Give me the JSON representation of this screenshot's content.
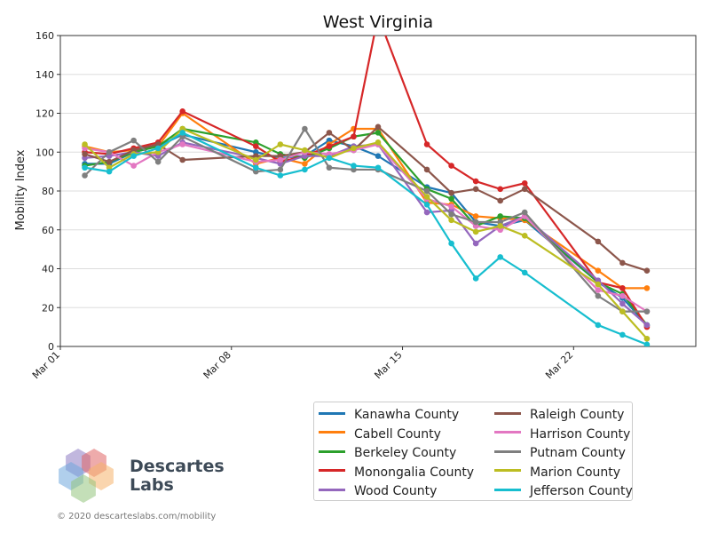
{
  "chart_data": {
    "type": "line",
    "title": "West Virginia",
    "xlabel": "",
    "ylabel": "Mobility Index",
    "ylim": [
      0,
      160
    ],
    "yticks": [
      0,
      20,
      40,
      60,
      80,
      100,
      120,
      140,
      160
    ],
    "xlim": [
      "2020-03-01",
      "2020-03-27"
    ],
    "xticks": [
      {
        "date": "2020-03-01",
        "label": "Mar 01"
      },
      {
        "date": "2020-03-08",
        "label": "Mar 08"
      },
      {
        "date": "2020-03-15",
        "label": "Mar 15"
      },
      {
        "date": "2020-03-22",
        "label": "Mar 22"
      }
    ],
    "grid": "horizontal",
    "legend_position": "bottom-right",
    "series": [
      {
        "name": "Kanawha County",
        "color": "#1f77b4",
        "points": [
          [
            "2020-03-02",
            94
          ],
          [
            "2020-03-03",
            94
          ],
          [
            "2020-03-04",
            100
          ],
          [
            "2020-03-05",
            103
          ],
          [
            "2020-03-06",
            109
          ],
          [
            "2020-03-09",
            100
          ],
          [
            "2020-03-10",
            97
          ],
          [
            "2020-03-11",
            98
          ],
          [
            "2020-03-12",
            106
          ],
          [
            "2020-03-13",
            103
          ],
          [
            "2020-03-14",
            98
          ],
          [
            "2020-03-16",
            82
          ],
          [
            "2020-03-17",
            79
          ],
          [
            "2020-03-18",
            64
          ],
          [
            "2020-03-19",
            62
          ],
          [
            "2020-03-20",
            65
          ],
          [
            "2020-03-23",
            33
          ],
          [
            "2020-03-24",
            25
          ],
          [
            "2020-03-25",
            11
          ]
        ]
      },
      {
        "name": "Cabell County",
        "color": "#ff7f0e",
        "points": [
          [
            "2020-03-02",
            103
          ],
          [
            "2020-03-03",
            100
          ],
          [
            "2020-03-04",
            101
          ],
          [
            "2020-03-05",
            103
          ],
          [
            "2020-03-06",
            120
          ],
          [
            "2020-03-09",
            94
          ],
          [
            "2020-03-10",
            97
          ],
          [
            "2020-03-11",
            94
          ],
          [
            "2020-03-12",
            104
          ],
          [
            "2020-03-13",
            112
          ],
          [
            "2020-03-14",
            112
          ],
          [
            "2020-03-16",
            74
          ],
          [
            "2020-03-17",
            73
          ],
          [
            "2020-03-18",
            67
          ],
          [
            "2020-03-19",
            66
          ],
          [
            "2020-03-20",
            65
          ],
          [
            "2020-03-23",
            39
          ],
          [
            "2020-03-24",
            30
          ],
          [
            "2020-03-25",
            30
          ]
        ]
      },
      {
        "name": "Berkeley County",
        "color": "#2ca02c",
        "points": [
          [
            "2020-03-02",
            93
          ],
          [
            "2020-03-03",
            95
          ],
          [
            "2020-03-04",
            100
          ],
          [
            "2020-03-05",
            103
          ],
          [
            "2020-03-06",
            112
          ],
          [
            "2020-03-09",
            105
          ],
          [
            "2020-03-10",
            99
          ],
          [
            "2020-03-11",
            97
          ],
          [
            "2020-03-12",
            102
          ],
          [
            "2020-03-13",
            108
          ],
          [
            "2020-03-14",
            110
          ],
          [
            "2020-03-16",
            81
          ],
          [
            "2020-03-17",
            76
          ],
          [
            "2020-03-18",
            62
          ],
          [
            "2020-03-19",
            67
          ],
          [
            "2020-03-20",
            66
          ],
          [
            "2020-03-23",
            33
          ],
          [
            "2020-03-24",
            27
          ],
          [
            "2020-03-25",
            11
          ]
        ]
      },
      {
        "name": "Monongalia County",
        "color": "#d62728",
        "points": [
          [
            "2020-03-02",
            100
          ],
          [
            "2020-03-03",
            99
          ],
          [
            "2020-03-04",
            102
          ],
          [
            "2020-03-05",
            105
          ],
          [
            "2020-03-06",
            121
          ],
          [
            "2020-03-09",
            103
          ],
          [
            "2020-03-10",
            95
          ],
          [
            "2020-03-11",
            98
          ],
          [
            "2020-03-12",
            103
          ],
          [
            "2020-03-13",
            108
          ],
          [
            "2020-03-14",
            170
          ],
          [
            "2020-03-16",
            104
          ],
          [
            "2020-03-17",
            93
          ],
          [
            "2020-03-18",
            85
          ],
          [
            "2020-03-19",
            81
          ],
          [
            "2020-03-20",
            84
          ],
          [
            "2020-03-23",
            33
          ],
          [
            "2020-03-24",
            30
          ],
          [
            "2020-03-25",
            10
          ]
        ]
      },
      {
        "name": "Wood County",
        "color": "#9467bd",
        "points": [
          [
            "2020-03-02",
            97
          ],
          [
            "2020-03-03",
            98
          ],
          [
            "2020-03-04",
            100
          ],
          [
            "2020-03-05",
            98
          ],
          [
            "2020-03-06",
            105
          ],
          [
            "2020-03-09",
            97
          ],
          [
            "2020-03-10",
            94
          ],
          [
            "2020-03-11",
            98
          ],
          [
            "2020-03-12",
            98
          ],
          [
            "2020-03-13",
            103
          ],
          [
            "2020-03-14",
            104
          ],
          [
            "2020-03-16",
            69
          ],
          [
            "2020-03-17",
            70
          ],
          [
            "2020-03-18",
            53
          ],
          [
            "2020-03-19",
            62
          ],
          [
            "2020-03-20",
            67
          ],
          [
            "2020-03-23",
            34
          ],
          [
            "2020-03-24",
            22
          ],
          [
            "2020-03-25",
            11
          ]
        ]
      },
      {
        "name": "Raleigh County",
        "color": "#8c564b",
        "points": [
          [
            "2020-03-02",
            99
          ],
          [
            "2020-03-03",
            95
          ],
          [
            "2020-03-04",
            101
          ],
          [
            "2020-03-05",
            104
          ],
          [
            "2020-03-06",
            96
          ],
          [
            "2020-03-09",
            98
          ],
          [
            "2020-03-10",
            98
          ],
          [
            "2020-03-11",
            100
          ],
          [
            "2020-03-12",
            110
          ],
          [
            "2020-03-13",
            101
          ],
          [
            "2020-03-14",
            113
          ],
          [
            "2020-03-16",
            91
          ],
          [
            "2020-03-17",
            79
          ],
          [
            "2020-03-18",
            81
          ],
          [
            "2020-03-19",
            75
          ],
          [
            "2020-03-20",
            81
          ],
          [
            "2020-03-23",
            54
          ],
          [
            "2020-03-24",
            43
          ],
          [
            "2020-03-25",
            39
          ]
        ]
      },
      {
        "name": "Harrison County",
        "color": "#e377c2",
        "points": [
          [
            "2020-03-02",
            102
          ],
          [
            "2020-03-03",
            100
          ],
          [
            "2020-03-04",
            93
          ],
          [
            "2020-03-05",
            100
          ],
          [
            "2020-03-06",
            104
          ],
          [
            "2020-03-09",
            95
          ],
          [
            "2020-03-10",
            96
          ],
          [
            "2020-03-11",
            100
          ],
          [
            "2020-03-12",
            99
          ],
          [
            "2020-03-13",
            101
          ],
          [
            "2020-03-14",
            104
          ],
          [
            "2020-03-16",
            76
          ],
          [
            "2020-03-17",
            72
          ],
          [
            "2020-03-18",
            62
          ],
          [
            "2020-03-19",
            60
          ],
          [
            "2020-03-20",
            67
          ],
          [
            "2020-03-23",
            29
          ],
          [
            "2020-03-24",
            26
          ],
          [
            "2020-03-25",
            18
          ]
        ]
      },
      {
        "name": "Putnam County",
        "color": "#7f7f7f",
        "points": [
          [
            "2020-03-02",
            88
          ],
          [
            "2020-03-03",
            100
          ],
          [
            "2020-03-04",
            106
          ],
          [
            "2020-03-05",
            95
          ],
          [
            "2020-03-06",
            108
          ],
          [
            "2020-03-09",
            90
          ],
          [
            "2020-03-10",
            91
          ],
          [
            "2020-03-11",
            112
          ],
          [
            "2020-03-12",
            92
          ],
          [
            "2020-03-13",
            91
          ],
          [
            "2020-03-14",
            91
          ],
          [
            "2020-03-16",
            80
          ],
          [
            "2020-03-17",
            68
          ],
          [
            "2020-03-18",
            64
          ],
          [
            "2020-03-19",
            64
          ],
          [
            "2020-03-20",
            69
          ],
          [
            "2020-03-23",
            26
          ],
          [
            "2020-03-24",
            18
          ],
          [
            "2020-03-25",
            18
          ]
        ]
      },
      {
        "name": "Marion County",
        "color": "#bcbd22",
        "points": [
          [
            "2020-03-02",
            104
          ],
          [
            "2020-03-03",
            92
          ],
          [
            "2020-03-04",
            99
          ],
          [
            "2020-03-05",
            100
          ],
          [
            "2020-03-06",
            112
          ],
          [
            "2020-03-09",
            96
          ],
          [
            "2020-03-10",
            104
          ],
          [
            "2020-03-11",
            101
          ],
          [
            "2020-03-12",
            97
          ],
          [
            "2020-03-13",
            102
          ],
          [
            "2020-03-14",
            105
          ],
          [
            "2020-03-16",
            77
          ],
          [
            "2020-03-17",
            65
          ],
          [
            "2020-03-18",
            59
          ],
          [
            "2020-03-19",
            62
          ],
          [
            "2020-03-20",
            57
          ],
          [
            "2020-03-23",
            32
          ],
          [
            "2020-03-24",
            18
          ],
          [
            "2020-03-25",
            4
          ]
        ]
      },
      {
        "name": "Jefferson County",
        "color": "#17becf",
        "points": [
          [
            "2020-03-02",
            92
          ],
          [
            "2020-03-03",
            90
          ],
          [
            "2020-03-04",
            98
          ],
          [
            "2020-03-05",
            102
          ],
          [
            "2020-03-06",
            110
          ],
          [
            "2020-03-09",
            92
          ],
          [
            "2020-03-10",
            88
          ],
          [
            "2020-03-11",
            91
          ],
          [
            "2020-03-12",
            97
          ],
          [
            "2020-03-13",
            93
          ],
          [
            "2020-03-14",
            92
          ],
          [
            "2020-03-16",
            73
          ],
          [
            "2020-03-17",
            53
          ],
          [
            "2020-03-18",
            35
          ],
          [
            "2020-03-19",
            46
          ],
          [
            "2020-03-20",
            38
          ],
          [
            "2020-03-23",
            11
          ],
          [
            "2020-03-24",
            6
          ],
          [
            "2020-03-25",
            1
          ]
        ]
      }
    ]
  },
  "branding": {
    "name_line1": "Descartes",
    "name_line2": "Labs",
    "footer": "© 2020 descarteslabs.com/mobility",
    "logo_colors": [
      "#8e7cc3",
      "#e06666",
      "#f6b26b",
      "#6fa8dc",
      "#93c47d"
    ]
  }
}
